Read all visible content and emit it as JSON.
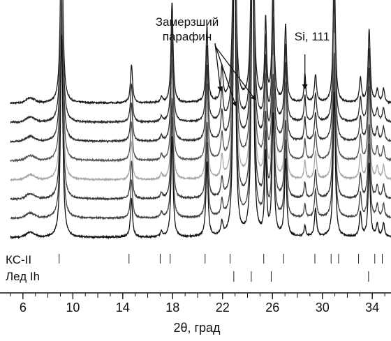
{
  "chart_data": {
    "type": "line",
    "xlabel": "2θ, град",
    "xlim": [
      5.0,
      35.5
    ],
    "xticks": [
      6,
      10,
      14,
      18,
      22,
      26,
      30,
      34
    ],
    "grid": false,
    "legend": "none",
    "series": [
      {
        "color": "#1a1a1a"
      },
      {
        "color": "#2a2a2a"
      },
      {
        "color": "#303030"
      },
      {
        "color": "#555555"
      },
      {
        "color": "#a8a8a8"
      },
      {
        "color": "#3a3a3a"
      },
      {
        "color": "#444444"
      },
      {
        "color": "#111111"
      }
    ],
    "peaks": [
      {
        "x": 9.1,
        "height": 290,
        "width": 0.11
      },
      {
        "x": 14.7,
        "height": 55,
        "width": 0.1
      },
      {
        "x": 17.1,
        "height": 8,
        "width": 0.1
      },
      {
        "x": 17.95,
        "height": 145,
        "width": 0.1
      },
      {
        "x": 20.75,
        "height": 108,
        "width": 0.1
      },
      {
        "x": 21.95,
        "height": 42,
        "width": 0.1,
        "varies": true
      },
      {
        "x": 22.95,
        "height": 520,
        "width": 0.1
      },
      {
        "x": 24.4,
        "height": 500,
        "width": 0.1
      },
      {
        "x": 25.45,
        "height": 116,
        "width": 0.09
      },
      {
        "x": 26.05,
        "height": 174,
        "width": 0.1
      },
      {
        "x": 27.05,
        "height": 110,
        "width": 0.1
      },
      {
        "x": 28.6,
        "height": 35,
        "width": 0.08,
        "varies": true
      },
      {
        "x": 29.45,
        "height": 40,
        "width": 0.1
      },
      {
        "x": 30.95,
        "height": 210,
        "width": 0.1
      },
      {
        "x": 33.05,
        "height": 35,
        "width": 0.1
      },
      {
        "x": 33.75,
        "height": 105,
        "width": 0.1
      },
      {
        "x": 34.4,
        "height": 18,
        "width": 0.1
      },
      {
        "x": 34.9,
        "height": 20,
        "width": 0.1
      }
    ],
    "reference_series": [
      {
        "name": "КС-II",
        "positions": [
          8.9,
          14.5,
          17.0,
          17.8,
          20.6,
          22.6,
          25.3,
          26.9,
          29.4,
          30.7,
          31.3,
          32.9,
          34.2,
          34.8
        ]
      },
      {
        "name": "Лед Ih",
        "positions": [
          22.9,
          24.3,
          25.9,
          33.7
        ]
      }
    ],
    "annotations": [
      {
        "text_lines": [
          "Замерзший",
          "парафин"
        ],
        "points_to": [
          21.95,
          22.95,
          24.4
        ]
      },
      {
        "text_lines": [
          "Si, 111"
        ],
        "points_to": [
          28.6
        ]
      }
    ]
  }
}
